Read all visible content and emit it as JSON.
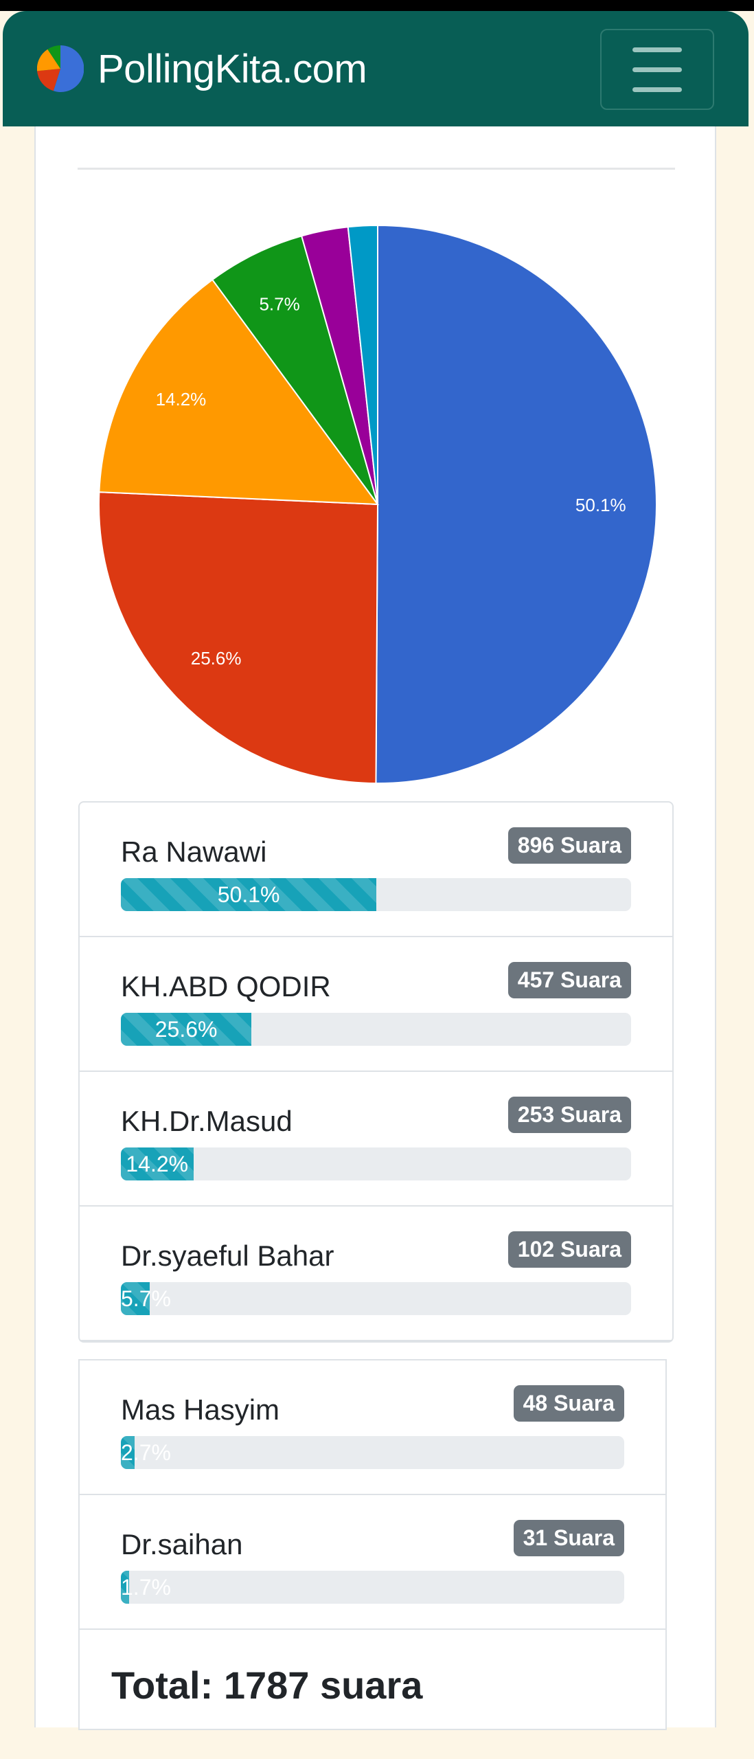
{
  "header": {
    "brand": "PollingKita.com",
    "menu_icon": "hamburger-icon"
  },
  "chart_data": {
    "type": "pie",
    "start": "12 o'clock, clockwise",
    "slices": [
      {
        "label": "Ra Nawawi",
        "value": 50.1,
        "color": "#3366cc"
      },
      {
        "label": "KH.ABD QODIR",
        "value": 25.6,
        "color": "#dc3912"
      },
      {
        "label": "KH.Dr.Masud",
        "value": 14.2,
        "color": "#ff9900"
      },
      {
        "label": "Dr.syaeful Bahar",
        "value": 5.7,
        "color": "#109618"
      },
      {
        "label": "Mas Hasyim",
        "value": 2.7,
        "color": "#990099"
      },
      {
        "label": "Dr.saihan",
        "value": 1.7,
        "color": "#0099c6"
      }
    ],
    "data_labels": [
      "50.1%",
      "25.6%",
      "14.2%",
      "5.7%",
      "",
      ""
    ]
  },
  "results": [
    {
      "name": "Ra Nawawi",
      "votes": "896 Suara",
      "percent": "50.1%",
      "fill": 50.1
    },
    {
      "name": "KH.ABD QODIR",
      "votes": "457 Suara",
      "percent": "25.6%",
      "fill": 25.6
    },
    {
      "name": "KH.Dr.Masud",
      "votes": "253 Suara",
      "percent": "14.2%",
      "fill": 14.2
    },
    {
      "name": "Dr.syaeful Bahar",
      "votes": "102 Suara",
      "percent": "5.7%",
      "fill": 5.7
    },
    {
      "name": "Mas Hasyim",
      "votes": "48 Suara",
      "percent": "2.7%",
      "fill": 2.7
    },
    {
      "name": "Dr.saihan",
      "votes": "31 Suara",
      "percent": "1.7%",
      "fill": 1.7
    }
  ],
  "total": "Total: 1787 suara"
}
